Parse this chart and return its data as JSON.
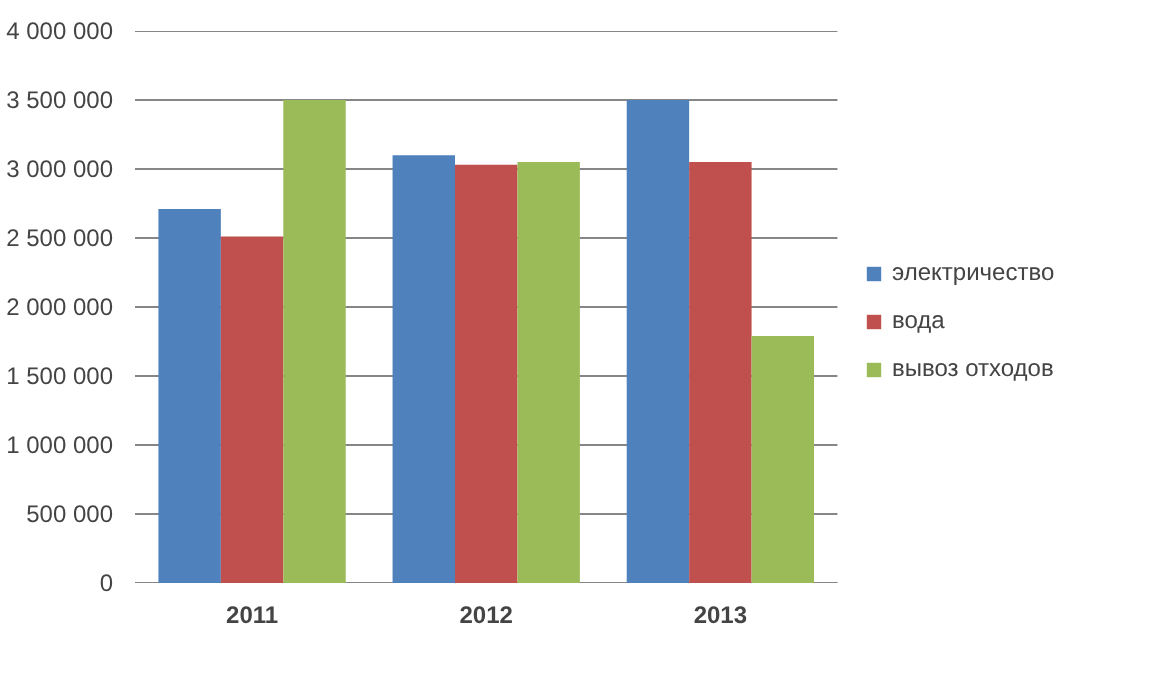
{
  "chart_data": {
    "type": "bar",
    "categories": [
      "2011",
      "2012",
      "2013"
    ],
    "series": [
      {
        "name": "электричество",
        "color": "#4f81bd",
        "values": [
          2710000,
          3100000,
          3500000
        ]
      },
      {
        "name": "вода",
        "color": "#c0504d",
        "values": [
          2510000,
          3030000,
          3050000
        ]
      },
      {
        "name": "вывоз отходов",
        "color": "#9bbb59",
        "values": [
          3500000,
          3050000,
          1790000
        ]
      }
    ],
    "ylim": [
      0,
      4000000
    ],
    "yticks": [
      0,
      {
        "value": 500000,
        "label": "500 000"
      },
      {
        "value": 1000000,
        "label": "1 000 000"
      },
      {
        "value": 1500000,
        "label": "1 500 000"
      },
      {
        "value": 2000000,
        "label": "2 000 000"
      },
      {
        "value": 2500000,
        "label": "2 500 000"
      },
      {
        "value": 3000000,
        "label": "3 000 000"
      },
      {
        "value": 3500000,
        "label": "3 500 000"
      },
      {
        "value": 4000000,
        "label": "4 000 000"
      }
    ],
    "grid": "y",
    "legend": "right"
  }
}
